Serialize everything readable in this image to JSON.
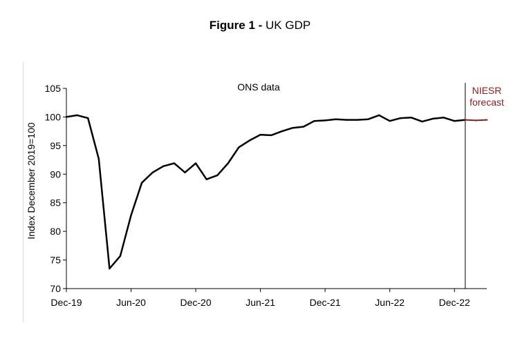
{
  "title": {
    "bold": "Figure 1 -",
    "rest": "UK GDP"
  },
  "colors": {
    "ons": "#000000",
    "niesr": "#8b1a1a",
    "axis": "#000000"
  },
  "chart_data": {
    "type": "line",
    "title": "Figure 1 - UK GDP",
    "ylabel": "Index December 2019=100",
    "xlabel": "",
    "ylim": [
      70,
      105
    ],
    "yticks": [
      70,
      75,
      80,
      85,
      90,
      95,
      100,
      105
    ],
    "x_tick_labels": [
      "Dec-19",
      "Jun-20",
      "Dec-20",
      "Jun-21",
      "Dec-21",
      "Jun-22",
      "Dec-22"
    ],
    "x_tick_month_index": [
      0,
      6,
      12,
      18,
      24,
      30,
      36
    ],
    "x_range_months": [
      0,
      39
    ],
    "forecast_start_month": 37,
    "series": [
      {
        "name": "ONS data",
        "month_index": [
          0,
          1,
          2,
          3,
          4,
          5,
          6,
          7,
          8,
          9,
          10,
          11,
          12,
          13,
          14,
          15,
          16,
          17,
          18,
          19,
          20,
          21,
          22,
          23,
          24,
          25,
          26,
          27,
          28,
          29,
          30,
          31,
          32,
          33,
          34,
          35,
          36,
          37
        ],
        "values": [
          100.0,
          100.3,
          99.8,
          92.7,
          73.5,
          75.7,
          82.8,
          88.5,
          90.3,
          91.4,
          91.9,
          90.3,
          91.9,
          89.1,
          89.8,
          91.9,
          94.7,
          95.9,
          96.9,
          96.8,
          97.5,
          98.1,
          98.3,
          99.3,
          99.4,
          99.6,
          99.5,
          99.5,
          99.6,
          100.3,
          99.3,
          99.8,
          99.9,
          99.2,
          99.7,
          99.9,
          99.3,
          99.5
        ]
      },
      {
        "name": "NIESR forecast",
        "month_index": [
          37,
          38,
          39
        ],
        "values": [
          99.5,
          99.4,
          99.5
        ]
      }
    ],
    "annotations": {
      "ons": "ONS data",
      "niesr_line1": "NIESR",
      "niesr_line2": "forecast"
    }
  }
}
